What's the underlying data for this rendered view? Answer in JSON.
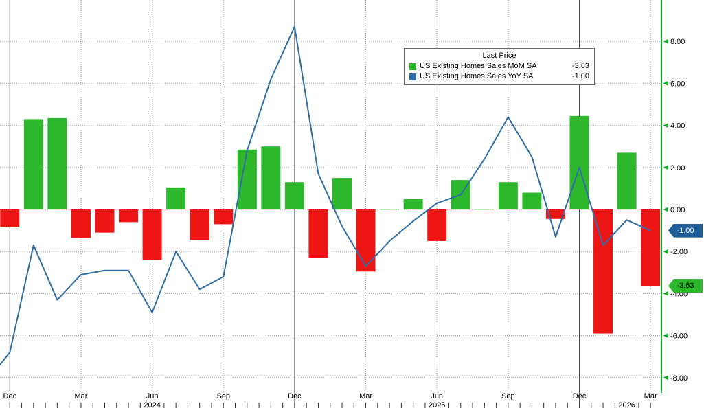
{
  "chart_data": {
    "type": "bar",
    "subtype": "bar+line combo (monthly)",
    "title": "",
    "xlabel": "",
    "ylabel": "",
    "x_range": "Dec 2023 - Mar 2026",
    "x_axis": {
      "tick_labels": [
        {
          "label": "Dec",
          "month_index": 0,
          "major": true
        },
        {
          "label": "Mar",
          "month_index": 3,
          "major": false
        },
        {
          "label": "Jun",
          "month_index": 6,
          "major": false
        },
        {
          "label": "Sep",
          "month_index": 9,
          "major": false
        },
        {
          "label": "Dec",
          "month_index": 12,
          "major": true
        },
        {
          "label": "Mar",
          "month_index": 15,
          "major": false
        },
        {
          "label": "Jun",
          "month_index": 18,
          "major": false
        },
        {
          "label": "Sep",
          "month_index": 21,
          "major": false
        },
        {
          "label": "Dec",
          "month_index": 24,
          "major": true
        },
        {
          "label": "Mar",
          "month_index": 27,
          "major": false
        }
      ],
      "year_labels": [
        {
          "label": "2024",
          "month_index": 6
        },
        {
          "label": "2025",
          "month_index": 18
        },
        {
          "label": "2026",
          "month_index": 26
        }
      ]
    },
    "y_axis": {
      "side": "right",
      "color": "#0fae2a",
      "range": [
        -8.8,
        9.95
      ],
      "ticks": [
        {
          "value": 8,
          "label": "8.00"
        },
        {
          "value": 6,
          "label": "6.00"
        },
        {
          "value": 4,
          "label": "4.00"
        },
        {
          "value": 2,
          "label": "2.00"
        },
        {
          "value": 0,
          "label": "0.00"
        },
        {
          "value": -2,
          "label": "-2.00"
        },
        {
          "value": -4,
          "label": "-4.00"
        },
        {
          "value": -6,
          "label": "-6.00"
        },
        {
          "value": -8,
          "label": "-8.00"
        }
      ]
    },
    "legend": {
      "title": "Last Price",
      "position": "top-right-inside"
    },
    "series": [
      {
        "name": "US Existing Homes Sales MoM SA",
        "type": "bar",
        "last_value_label": "-3.63",
        "color_positive": "#2db72d",
        "color_negative": "#ee1515",
        "values": [
          -0.85,
          4.3,
          4.35,
          -1.35,
          -1.1,
          -0.6,
          -2.4,
          1.05,
          -1.45,
          -0.7,
          2.85,
          3.0,
          1.3,
          -2.3,
          1.5,
          -2.95,
          0,
          0.5,
          -1.5,
          1.4,
          0,
          1.3,
          0.8,
          -0.45,
          4.45,
          -5.9,
          2.7,
          -3.63
        ]
      },
      {
        "name": "US Existing Homes Sales YoY SA",
        "type": "line",
        "last_value_label": "-1.00",
        "color": "#2f6da8",
        "lead_value": -8.2,
        "values": [
          -6.8,
          -1.7,
          -4.3,
          -3.1,
          -2.9,
          -2.9,
          -4.9,
          -2.0,
          -3.8,
          -3.2,
          2.8,
          6.2,
          8.7,
          1.7,
          -0.8,
          -2.7,
          -1.5,
          -0.55,
          0.3,
          0.7,
          2.4,
          4.4,
          2.5,
          -1.3,
          2.0,
          -1.7,
          -0.5,
          -1.0
        ]
      }
    ],
    "price_badges": [
      {
        "label": "-1.00",
        "value": -1.0,
        "bg": "#1d5c97",
        "fg": "#ffffff"
      },
      {
        "label": "-3.63",
        "value": -3.63,
        "bg": "#2db72d",
        "fg": "#000000"
      }
    ],
    "grid": {
      "horizontal": "dotted",
      "vertical_quarters": "dotted",
      "vertical_years": "solid"
    }
  }
}
